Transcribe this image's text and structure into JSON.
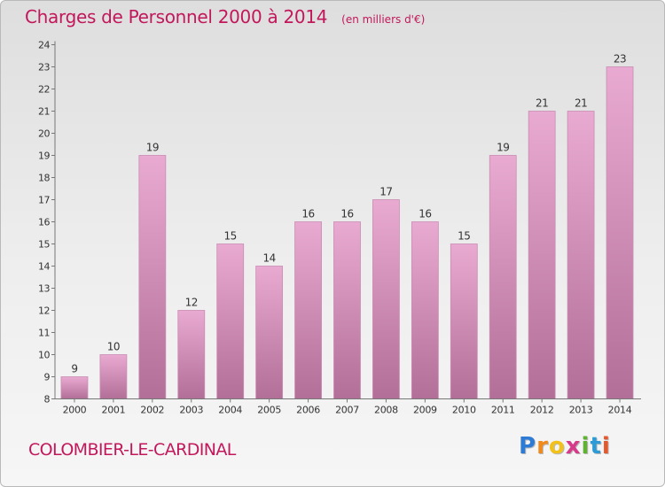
{
  "header": {
    "title": "Charges de Personnel 2000 à 2014",
    "unit": "(en milliers d'€)"
  },
  "footer": {
    "commune": "COLOMBIER-LE-CARDINAL",
    "logo_letters": [
      "P",
      "r",
      "o",
      "x",
      "i",
      "t",
      "i"
    ],
    "logo_colors": [
      "#2e7bd6",
      "#f08a1c",
      "#f2c21b",
      "#d83a8a",
      "#5fb233",
      "#2e9bd6",
      "#e8572a"
    ]
  },
  "colors": {
    "bar_top": "#e9aad2",
    "bar_bottom": "#b26f97",
    "title": "#c2185b"
  },
  "chart_data": {
    "type": "bar",
    "categories": [
      "2000",
      "2001",
      "2002",
      "2003",
      "2004",
      "2005",
      "2006",
      "2007",
      "2008",
      "2009",
      "2010",
      "2011",
      "2012",
      "2013",
      "2014"
    ],
    "values": [
      9,
      10,
      19,
      12,
      15,
      14,
      16,
      16,
      17,
      16,
      15,
      19,
      21,
      21,
      23
    ],
    "ylim": [
      8,
      24
    ],
    "yticks": [
      8,
      9,
      10,
      11,
      12,
      13,
      14,
      15,
      16,
      17,
      18,
      19,
      20,
      21,
      22,
      23,
      24
    ],
    "grid": false,
    "data_labels": true
  }
}
